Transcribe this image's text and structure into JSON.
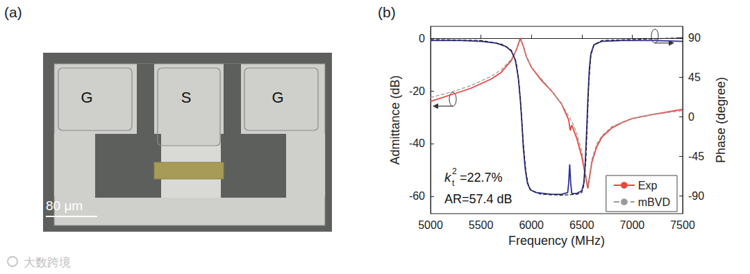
{
  "panel_labels": [
    "(a)",
    "(b)"
  ],
  "micrograph": {
    "pads": [
      "G",
      "S",
      "G"
    ],
    "scale_bar": "80 μm"
  },
  "watermark": "大数跨境",
  "chart_data": {
    "type": "line",
    "x_label": "Frequency (MHz)",
    "y_label": "Admittance (dB)",
    "y2_label": "Phase (degree)",
    "xlim": [
      5000,
      7500
    ],
    "xticks": [
      5000,
      5500,
      6000,
      6500,
      7000,
      7500
    ],
    "ylim": [
      -66.6,
      4.5
    ],
    "yticks": [
      -60,
      -40,
      -20,
      0
    ],
    "y2lim": [
      -110,
      103
    ],
    "y2ticks": [
      -90,
      -45,
      0,
      45,
      90
    ],
    "grid": false,
    "legend": "lower right",
    "annotations": [
      {
        "symbol": "k",
        "subscript": "t",
        "superscript": "2",
        "text": "=22.7%"
      },
      {
        "text": "AR=57.4 dB"
      }
    ],
    "series": [
      {
        "name": "Exp",
        "color": "#e8453c",
        "line_style": "solid",
        "x": [
          5000,
          5200,
          5400,
          5600,
          5700,
          5800,
          5850,
          5890,
          5920,
          5950,
          6000,
          6050,
          6100,
          6200,
          6300,
          6370,
          6385,
          6400,
          6450,
          6500,
          6540,
          6560,
          6580,
          6600,
          6650,
          6700,
          6800,
          6900,
          7000,
          7200,
          7500
        ],
        "values": [
          -24,
          -21.5,
          -19,
          -15.5,
          -13,
          -8.5,
          -4.5,
          0,
          -3,
          -7,
          -11,
          -13.5,
          -16,
          -20,
          -25,
          -31,
          -35,
          -33,
          -38,
          -45,
          -53,
          -57,
          -52,
          -47,
          -41,
          -37.5,
          -34,
          -32,
          -30.5,
          -29,
          -27
        ]
      },
      {
        "name": "Exp",
        "color": "#2e2e95",
        "line_style": "solid",
        "axis": "y2",
        "x": [
          5000,
          5300,
          5500,
          5650,
          5750,
          5800,
          5840,
          5870,
          5890,
          5905,
          5920,
          5940,
          5960,
          5990,
          6050,
          6200,
          6300,
          6360,
          6370,
          6380,
          6390,
          6400,
          6450,
          6500,
          6520,
          6535,
          6550,
          6560,
          6575,
          6590,
          6620,
          6700,
          6900,
          7200,
          7500
        ],
        "values": [
          87,
          87,
          86,
          84,
          80,
          75,
          65,
          45,
          20,
          -5,
          -35,
          -60,
          -75,
          -83,
          -86,
          -88,
          -88,
          -86,
          -75,
          -54,
          -75,
          -87,
          -87,
          -84,
          -75,
          -50,
          -10,
          20,
          55,
          72,
          82,
          86,
          87,
          87,
          86
        ]
      },
      {
        "name": "mBVD",
        "color": "#9a9a9a",
        "line_style": "dashed",
        "x": [
          5000,
          5200,
          5400,
          5600,
          5700,
          5800,
          5850,
          5890,
          5920,
          5950,
          6000,
          6100,
          6200,
          6300,
          6400,
          6450,
          6500,
          6540,
          6560,
          6580,
          6600,
          6650,
          6700,
          6800,
          7000,
          7200,
          7500
        ],
        "values": [
          -22.5,
          -20.5,
          -18,
          -14.5,
          -12,
          -8,
          -4.5,
          -0.5,
          -3,
          -7,
          -11,
          -15.5,
          -20,
          -25,
          -31.5,
          -36,
          -43,
          -52,
          -56,
          -51,
          -46,
          -40,
          -37,
          -33.5,
          -30.5,
          -29,
          -27.5
        ]
      },
      {
        "name": "mBVD",
        "color": "#222222",
        "line_style": "dashed",
        "axis": "y2",
        "x": [
          5000,
          5500,
          5700,
          5800,
          5850,
          5880,
          5900,
          5920,
          5945,
          5970,
          6000,
          6100,
          6300,
          6450,
          6500,
          6520,
          6540,
          6555,
          6570,
          6590,
          6620,
          6700,
          7000,
          7500
        ],
        "values": [
          88,
          87,
          83,
          76,
          62,
          35,
          5,
          -30,
          -62,
          -78,
          -84,
          -88,
          -89,
          -88,
          -86,
          -78,
          -50,
          -5,
          40,
          70,
          82,
          87,
          88,
          90
        ]
      }
    ]
  }
}
